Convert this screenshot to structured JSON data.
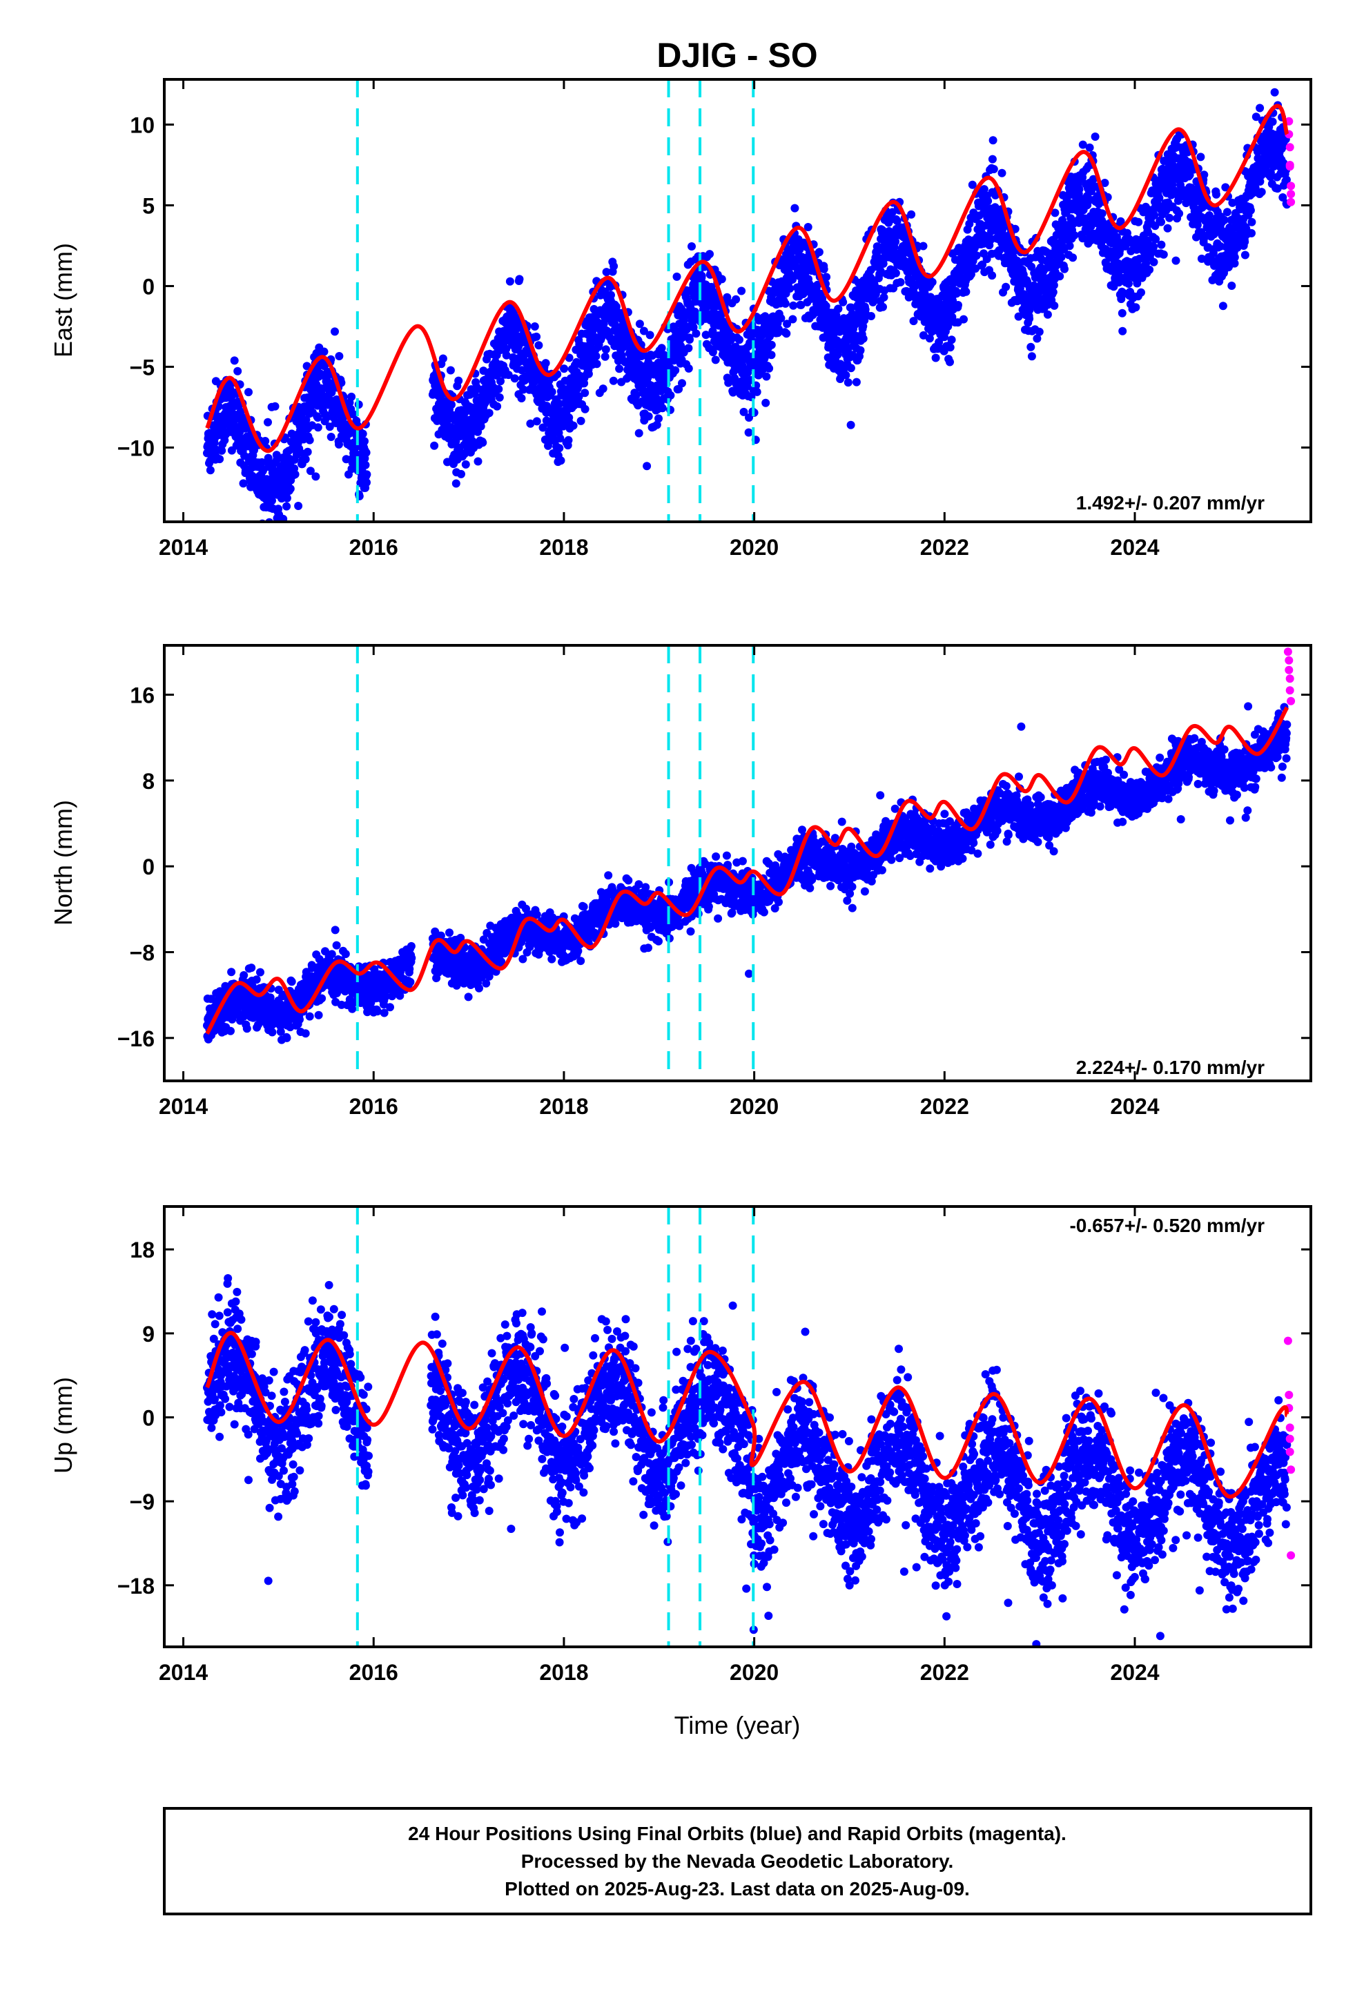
{
  "title": "DJIG - SO",
  "xlabel": "Time (year)",
  "colors": {
    "final_orbits": "#0000ff",
    "rapid_orbits": "#ff00ff",
    "model": "#ff0000",
    "offsets": "#00e5ee"
  },
  "footer": {
    "line1": "24 Hour Positions Using Final Orbits (blue) and Rapid Orbits (magenta).",
    "line2": "Processed by the Nevada Geodetic Laboratory.",
    "line3": "Plotted on 2025-Aug-23. Last data on 2025-Aug-09."
  },
  "chart_data": [
    {
      "type": "scatter",
      "name": "east",
      "ylabel": "East (mm)",
      "rate_label": "1.492+/- 0.207 mm/yr",
      "rate_position": "bottom-right",
      "xlim": [
        2013.8,
        2025.85
      ],
      "ylim": [
        -14.6,
        12.8
      ],
      "xticks": [
        2014,
        2016,
        2018,
        2020,
        2022,
        2024
      ],
      "xtick_labels": [
        "2014",
        "2016",
        "2018",
        "2020",
        "2022",
        "2024"
      ],
      "yticks": [
        -10,
        -5,
        0,
        5,
        10
      ],
      "ytick_labels": [
        "−10",
        "−5",
        "0",
        "5",
        "10"
      ],
      "offsets_x": [
        2015.83,
        2019.1,
        2019.43,
        2019.99
      ],
      "gaps": [
        [
          2015.93,
          2016.62
        ]
      ],
      "data_start": 2014.25,
      "data_end": 2025.6,
      "trend": {
        "rate": 1.492,
        "intercept_2020": -2.2
      },
      "seasonal": {
        "amplitude": 2.7,
        "peak_phase": 0.45
      },
      "scatter_sd": 1.3,
      "steps": [],
      "series": [
        {
          "name": "model",
          "x": [
            2014.25,
            2014.5,
            2014.9,
            2015.45,
            2015.85,
            2016.45,
            2016.85,
            2017.42,
            2017.85,
            2018.45,
            2018.85,
            2019.45,
            2019.85,
            2020.45,
            2020.85,
            2021.45,
            2021.85,
            2022.45,
            2022.85,
            2023.45,
            2023.85,
            2024.45,
            2024.85,
            2025.45,
            2025.6
          ],
          "y": [
            -8.8,
            -5.7,
            -10.2,
            -4.4,
            -8.8,
            -2.5,
            -7.0,
            -1.0,
            -5.5,
            0.5,
            -4.0,
            1.5,
            -2.8,
            3.6,
            -0.9,
            5.2,
            0.6,
            6.7,
            2.1,
            8.3,
            3.6,
            9.7,
            5.0,
            11.0,
            9.4
          ]
        }
      ],
      "rapid_points": {
        "x": [
          2025.62,
          2025.62,
          2025.63,
          2025.63,
          2025.63,
          2025.64,
          2025.64,
          2025.64
        ],
        "y": [
          10.2,
          9.4,
          8.6,
          7.5,
          7.4,
          6.2,
          5.7,
          5.2
        ]
      }
    },
    {
      "type": "scatter",
      "name": "north",
      "ylabel": "North (mm)",
      "rate_label": "2.224+/- 0.170 mm/yr",
      "rate_position": "bottom-right",
      "xlim": [
        2013.8,
        2025.85
      ],
      "ylim": [
        -20,
        20.6
      ],
      "xticks": [
        2014,
        2016,
        2018,
        2020,
        2022,
        2024
      ],
      "xtick_labels": [
        "2014",
        "2016",
        "2018",
        "2020",
        "2022",
        "2024"
      ],
      "yticks": [
        -16,
        -8,
        0,
        8,
        16
      ],
      "ytick_labels": [
        "−16",
        "−8",
        "0",
        "8",
        "16"
      ],
      "offsets_x": [
        2015.83,
        2019.1,
        2019.43,
        2019.99
      ],
      "gaps": [
        [
          2016.4,
          2016.62
        ]
      ],
      "data_start": 2014.25,
      "data_end": 2025.6,
      "trend": {
        "rate": 2.224,
        "intercept_2020": -1.5
      },
      "seasonal": {
        "amplitude": 1.2,
        "peak_phase": 0.55
      },
      "scatter_sd": 1.0,
      "steps": [],
      "series": [
        {
          "name": "model",
          "x": [
            2014.25,
            2014.55,
            2014.8,
            2015.0,
            2015.25,
            2015.6,
            2015.85,
            2016.05,
            2016.4,
            2016.65,
            2016.85,
            2017.0,
            2017.35,
            2017.6,
            2017.85,
            2018.0,
            2018.3,
            2018.6,
            2018.85,
            2019.0,
            2019.3,
            2019.6,
            2019.85,
            2020.0,
            2020.3,
            2020.6,
            2020.85,
            2021.0,
            2021.3,
            2021.6,
            2021.85,
            2022.0,
            2022.3,
            2022.6,
            2022.85,
            2023.0,
            2023.3,
            2023.6,
            2023.85,
            2024.0,
            2024.3,
            2024.6,
            2024.85,
            2025.0,
            2025.3,
            2025.6
          ],
          "y": [
            -15.6,
            -11.0,
            -12.0,
            -10.5,
            -13.5,
            -9.0,
            -10.0,
            -9.0,
            -11.5,
            -7.0,
            -8.0,
            -7.0,
            -9.5,
            -5.0,
            -6.0,
            -5.0,
            -7.5,
            -2.5,
            -3.5,
            -2.5,
            -4.5,
            -0.2,
            -1.5,
            -0.5,
            -2.5,
            3.5,
            2.0,
            3.5,
            1.0,
            6.0,
            4.5,
            6.0,
            3.5,
            8.5,
            7.0,
            8.5,
            6.0,
            11.0,
            9.5,
            11.0,
            8.5,
            13.0,
            11.5,
            13.0,
            10.5,
            14.8
          ]
        }
      ],
      "rapid_points": {
        "x": [
          2025.61,
          2025.62,
          2025.62,
          2025.63,
          2025.63,
          2025.64
        ],
        "y": [
          20.0,
          19.2,
          18.3,
          17.5,
          16.4,
          15.4
        ]
      }
    },
    {
      "type": "scatter",
      "name": "up",
      "ylabel": "Up (mm)",
      "rate_label": "-0.657+/- 0.520 mm/yr",
      "rate_position": "top-right",
      "xlim": [
        2013.8,
        2025.85
      ],
      "ylim": [
        -24.6,
        22.6
      ],
      "xticks": [
        2014,
        2016,
        2018,
        2020,
        2022,
        2024
      ],
      "xtick_labels": [
        "2014",
        "2016",
        "2018",
        "2020",
        "2022",
        "2024"
      ],
      "yticks": [
        -18,
        -9,
        0,
        9,
        18
      ],
      "ytick_labels": [
        "−18",
        "−9",
        "0",
        "9",
        "18"
      ],
      "offsets_x": [
        2015.83,
        2019.1,
        2019.43,
        2019.99
      ],
      "gaps": [
        [
          2015.95,
          2016.6
        ]
      ],
      "data_start": 2014.25,
      "data_end": 2025.6,
      "trend": {
        "rate": -0.657,
        "intercept_2020": -1.5
      },
      "seasonal": {
        "amplitude": 4.8,
        "peak_phase": 0.52
      },
      "scatter_sd": 3.0,
      "steps": [
        {
          "x": 2019.99,
          "dy": -4.5
        }
      ],
      "series": [
        {
          "name": "model",
          "x": [
            2014.25,
            2014.52,
            2015.0,
            2015.52,
            2016.0,
            2016.52,
            2017.0,
            2017.52,
            2018.0,
            2018.52,
            2019.0,
            2019.52,
            2019.98,
            2020.0,
            2020.52,
            2021.0,
            2021.52,
            2022.0,
            2022.52,
            2023.0,
            2023.52,
            2024.0,
            2024.52,
            2025.0,
            2025.52,
            2025.6
          ],
          "y": [
            3.2,
            9.0,
            -0.5,
            8.3,
            -0.8,
            8.0,
            -1.2,
            7.5,
            -2.0,
            7.2,
            -2.6,
            7.0,
            -0.5,
            -5.0,
            3.8,
            -5.8,
            3.2,
            -6.5,
            2.5,
            -7.0,
            2.0,
            -7.6,
            1.3,
            -8.5,
            0.5,
            0.2
          ]
        }
      ],
      "rapid_points": {
        "x": [
          2025.61,
          2025.62,
          2025.62,
          2025.63,
          2025.63,
          2025.63,
          2025.64,
          2025.64
        ],
        "y": [
          8.2,
          2.4,
          1.0,
          -1.1,
          -2.3,
          -3.7,
          -5.6,
          -14.8
        ]
      }
    }
  ]
}
